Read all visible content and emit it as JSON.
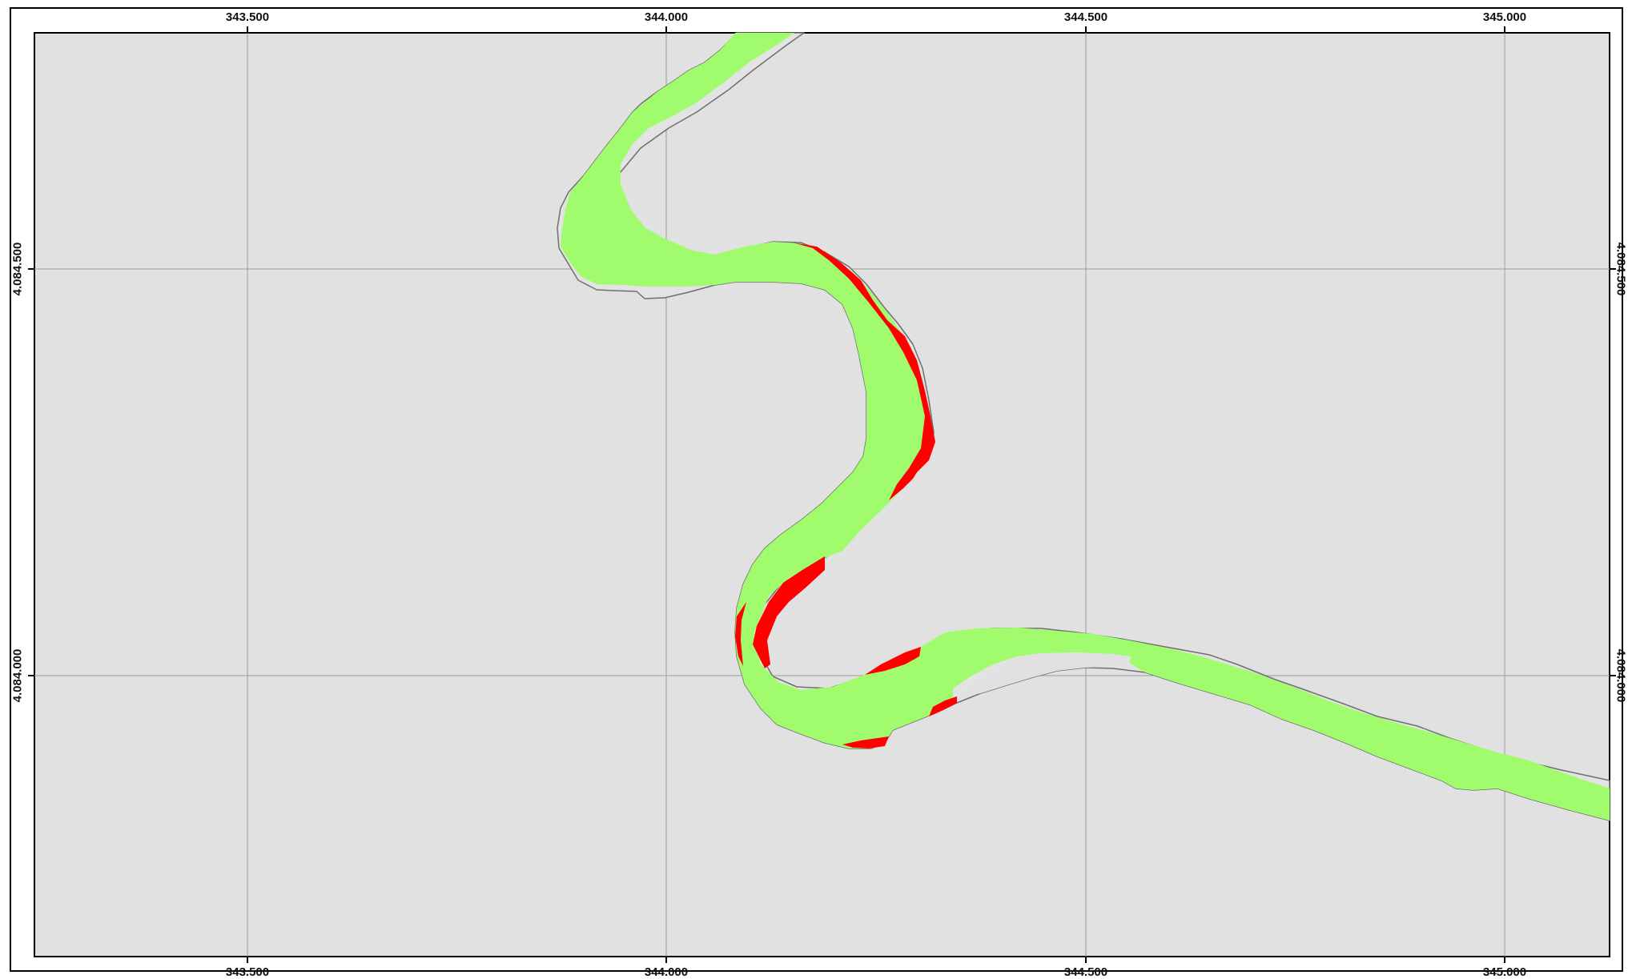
{
  "map": {
    "x_ticks": [
      "343.500",
      "344.000",
      "344.500",
      "345.000"
    ],
    "y_ticks": [
      "4.084.500",
      "4.084.000"
    ],
    "colors": {
      "frame_background": "#e1e1e1",
      "grid": "#9a9a9a",
      "channel_outline": "#6f6f6f",
      "river_green": "#a0fc6c",
      "river_red": "#ff0000",
      "border": "#000000"
    },
    "layers": [
      "channel-outline",
      "green-area",
      "red-area",
      "graticule"
    ]
  }
}
